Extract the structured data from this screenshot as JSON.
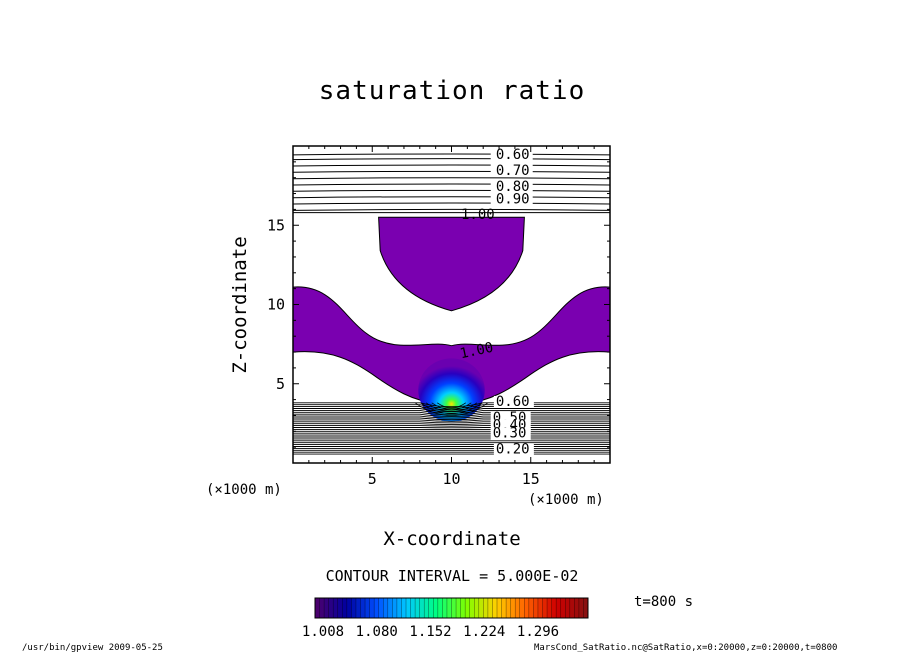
{
  "chart_data": {
    "type": "heatmap",
    "title": "saturation ratio",
    "xlabel": "X-coordinate",
    "ylabel": "Z-coordinate",
    "x_unit_label": "(×1000 m)",
    "xlim": [
      0,
      20
    ],
    "ylim": [
      0,
      20
    ],
    "x_ticks": [
      5,
      10,
      15
    ],
    "y_ticks": [
      5,
      10,
      15
    ],
    "contour_interval_text": "CONTOUR INTERVAL = 5.000E-02",
    "time_label": "t=800 s",
    "contour_labels_upper": [
      "0.60",
      "0.70",
      "0.80",
      "0.90",
      "1.00"
    ],
    "contour_labels_lower": [
      "1.00",
      "0.60",
      "0.50",
      "0.40",
      "0.30",
      "0.20"
    ],
    "fill_threshold": 1.0,
    "colorbar": {
      "ticks": [
        "1.008",
        "1.080",
        "1.152",
        "1.224",
        "1.296"
      ],
      "colors": [
        "#4a006e",
        "#0000a0",
        "#0050ff",
        "#00c8ff",
        "#00ff80",
        "#80ff00",
        "#ffd000",
        "#ff6000",
        "#d00000",
        "#8a1010"
      ]
    },
    "regions": [
      {
        "name": "upper supersaturated lobe",
        "x": [
          5.4,
          14.6
        ],
        "z": [
          9.6,
          15.5
        ]
      },
      {
        "name": "lower supersaturated band",
        "x": [
          0,
          20
        ],
        "z": [
          3.8,
          11.1
        ]
      },
      {
        "name": "maximum",
        "x": 10,
        "z": 4.2,
        "value": 1.3
      }
    ]
  },
  "footer": {
    "left": "/usr/bin/gpview   2009-05-25",
    "right": "MarsCond_SatRatio.nc@SatRatio,x=0:20000,z=0:20000,t=0800"
  }
}
